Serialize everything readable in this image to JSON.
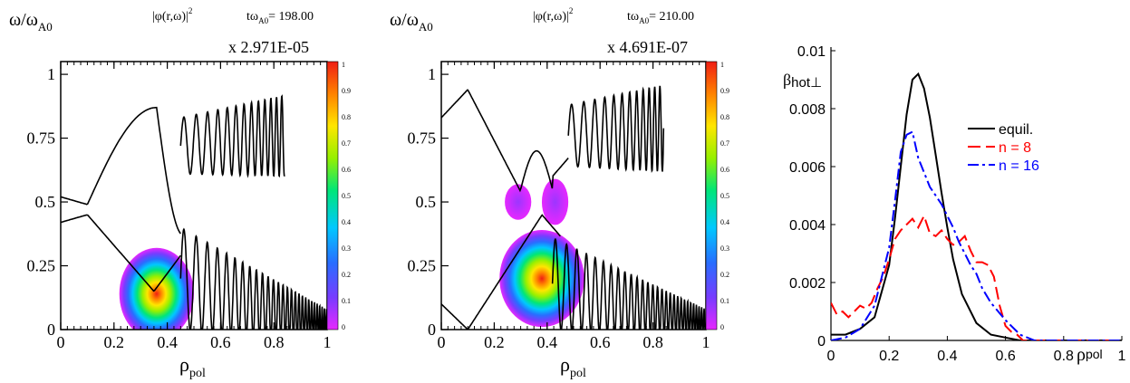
{
  "chart_data": [
    {
      "type": "heatmap",
      "ylabel_main": "ω/ω",
      "ylabel_sub": "A0",
      "title_main": "|φ(r,ω)|",
      "title_sup": "2",
      "time_main": "tω",
      "time_sub": "A0",
      "time_value": "= 198.00",
      "scale": "x 2.971E-05",
      "xlabel_main": "ρ",
      "xlabel_sub": "pol",
      "xlim": [
        0,
        1
      ],
      "ylim": [
        0,
        1.05
      ],
      "x_ticks": [
        "0",
        "0.2",
        "0.4",
        "0.6",
        "0.8",
        "1"
      ],
      "y_ticks": [
        "0",
        "0.25",
        "0.5",
        "0.75",
        "1"
      ],
      "colorbar_ticks": [
        "1",
        "0.9",
        "0.8",
        "0.7",
        "0.6",
        "0.5",
        "0.4",
        "0.3",
        "0.2",
        "0.1",
        "0"
      ],
      "blobs": [
        {
          "x": 0.36,
          "y": 0.14,
          "rx": 0.14,
          "ry": 0.18,
          "peak": 1.0
        }
      ]
    },
    {
      "type": "heatmap",
      "ylabel_main": "ω/ω",
      "ylabel_sub": "A0",
      "title_main": "|φ(r,ω)|",
      "title_sup": "2",
      "time_main": "tω",
      "time_sub": "A0",
      "time_value": "= 210.00",
      "scale": "x 4.691E-07",
      "xlabel_main": "ρ",
      "xlabel_sub": "pol",
      "xlim": [
        0,
        1
      ],
      "ylim": [
        0,
        1.05
      ],
      "x_ticks": [
        "0",
        "0.2",
        "0.4",
        "0.6",
        "0.8",
        "1"
      ],
      "y_ticks": [
        "0",
        "0.25",
        "0.5",
        "0.75",
        "1"
      ],
      "colorbar_ticks": [
        "1",
        "0.9",
        "0.8",
        "0.7",
        "0.6",
        "0.5",
        "0.4",
        "0.3",
        "0.2",
        "0.1",
        "0"
      ],
      "blobs": [
        {
          "x": 0.38,
          "y": 0.2,
          "rx": 0.16,
          "ry": 0.19,
          "peak": 1.0
        },
        {
          "x": 0.29,
          "y": 0.5,
          "rx": 0.05,
          "ry": 0.07,
          "peak": 0.12
        },
        {
          "x": 0.43,
          "y": 0.5,
          "rx": 0.05,
          "ry": 0.09,
          "peak": 0.12
        }
      ]
    },
    {
      "type": "line",
      "ylabel_main": "β",
      "ylabel_sub": "hot⊥",
      "xlabel_main": "ρ",
      "xlabel_sub": "pol",
      "xlim": [
        0,
        1
      ],
      "ylim": [
        0,
        0.01
      ],
      "x_ticks": [
        "0",
        "0.2",
        "0.4",
        "0.6",
        "0.8",
        "1"
      ],
      "y_ticks": [
        "0",
        "0.002",
        "0.004",
        "0.006",
        "0.008",
        "0.01"
      ],
      "legend": [
        "equil.",
        "n = 8",
        "n = 16"
      ],
      "series": [
        {
          "name": "equil.",
          "color": "#000000",
          "x": [
            0,
            0.05,
            0.1,
            0.15,
            0.2,
            0.22,
            0.24,
            0.26,
            0.28,
            0.3,
            0.32,
            0.34,
            0.36,
            0.38,
            0.4,
            0.42,
            0.45,
            0.5,
            0.55,
            0.6,
            0.65,
            0.7,
            1.0
          ],
          "y": [
            0.0002,
            0.0002,
            0.0004,
            0.0008,
            0.0026,
            0.0042,
            0.006,
            0.0078,
            0.009,
            0.0092,
            0.0087,
            0.0077,
            0.0064,
            0.0051,
            0.0039,
            0.0028,
            0.0016,
            0.0006,
            0.0002,
            0.0001,
            0,
            0,
            0
          ]
        },
        {
          "name": "n = 8",
          "color": "#ff0000",
          "x": [
            0,
            0.02,
            0.04,
            0.06,
            0.08,
            0.1,
            0.12,
            0.14,
            0.16,
            0.18,
            0.2,
            0.22,
            0.24,
            0.26,
            0.28,
            0.3,
            0.32,
            0.34,
            0.36,
            0.38,
            0.4,
            0.42,
            0.44,
            0.46,
            0.48,
            0.5,
            0.52,
            0.54,
            0.56,
            0.58,
            0.6,
            0.62,
            0.64,
            0.66,
            0.7,
            1.0
          ],
          "y": [
            0.0013,
            0.0009,
            0.001,
            0.0008,
            0.001,
            0.0012,
            0.0011,
            0.0013,
            0.0018,
            0.0022,
            0.0028,
            0.0035,
            0.0038,
            0.004,
            0.0042,
            0.0039,
            0.0043,
            0.0037,
            0.0036,
            0.0038,
            0.0035,
            0.0033,
            0.0034,
            0.0036,
            0.0031,
            0.0027,
            0.0027,
            0.0026,
            0.0022,
            0.0012,
            0.0005,
            0.0003,
            0.0002,
            0,
            0,
            0
          ]
        },
        {
          "name": "n = 16",
          "color": "#0000ff",
          "x": [
            0,
            0.05,
            0.1,
            0.15,
            0.2,
            0.22,
            0.24,
            0.26,
            0.28,
            0.3,
            0.32,
            0.34,
            0.36,
            0.38,
            0.4,
            0.42,
            0.44,
            0.46,
            0.48,
            0.5,
            0.52,
            0.55,
            0.6,
            0.65,
            0.7,
            1.0
          ],
          "y": [
            0,
            0.0001,
            0.0004,
            0.0012,
            0.0032,
            0.0048,
            0.0065,
            0.0071,
            0.0072,
            0.0063,
            0.0058,
            0.0053,
            0.005,
            0.0047,
            0.0043,
            0.0039,
            0.0034,
            0.003,
            0.0026,
            0.0023,
            0.0018,
            0.0013,
            0.0007,
            0.0002,
            0,
            0
          ]
        }
      ]
    }
  ]
}
